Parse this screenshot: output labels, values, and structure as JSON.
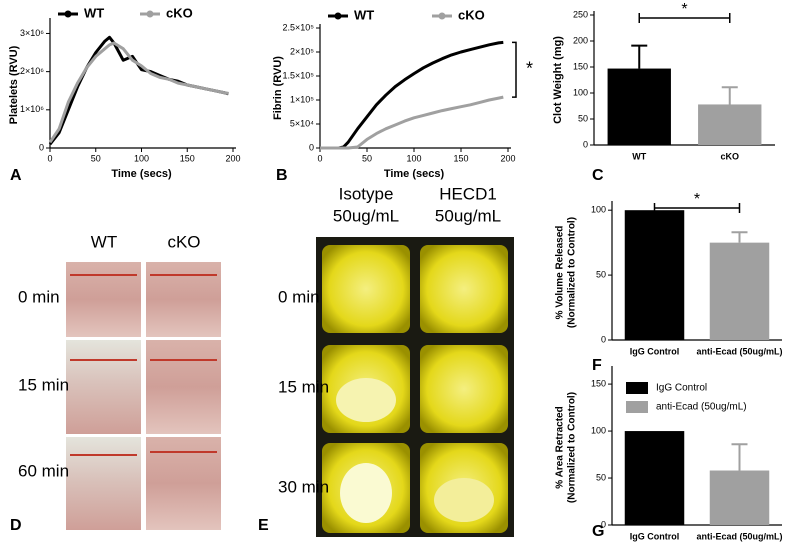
{
  "chart_data": [
    {
      "type": "line",
      "panel_label": "A",
      "ylabel": "Platelets (RVU)",
      "xlabel": "Time (secs)",
      "x": [
        0,
        10,
        20,
        30,
        40,
        50,
        60,
        65,
        70,
        80,
        90,
        100,
        110,
        120,
        130,
        140,
        150,
        160,
        170,
        180,
        190,
        195
      ],
      "series": [
        {
          "name": "WT",
          "color": "#000000",
          "values": [
            100000,
            400000,
            1000000,
            1600000,
            2100000,
            2500000,
            2800000,
            2900000,
            2750000,
            2300000,
            2400000,
            2050000,
            2000000,
            1900000,
            1800000,
            1750000,
            1650000,
            1600000,
            1550000,
            1500000,
            1450000,
            1420000
          ]
        },
        {
          "name": "cKO",
          "color": "#a0a0a0",
          "values": [
            150000,
            500000,
            1200000,
            1700000,
            2100000,
            2400000,
            2600000,
            2700000,
            2750000,
            2600000,
            2300000,
            2150000,
            1950000,
            1850000,
            1800000,
            1700000,
            1650000,
            1600000,
            1550000,
            1500000,
            1450000,
            1430000
          ]
        }
      ],
      "xlim": [
        0,
        200
      ],
      "xticks": [
        0,
        50,
        100,
        150,
        200
      ],
      "ylim": [
        0,
        3300000
      ],
      "yticks": [
        0,
        {
          "value": 1000000,
          "label": "1×10⁶"
        },
        {
          "value": 2000000,
          "label": "2×10⁶"
        },
        {
          "value": 3000000,
          "label": "3×10⁶"
        }
      ]
    },
    {
      "type": "line",
      "panel_label": "B",
      "ylabel": "Fibrin (RVU)",
      "xlabel": "Time (secs)",
      "x": [
        0,
        10,
        20,
        25,
        30,
        40,
        50,
        60,
        70,
        80,
        90,
        100,
        110,
        120,
        130,
        140,
        150,
        160,
        170,
        180,
        190,
        195
      ],
      "series": [
        {
          "name": "WT",
          "color": "#000000",
          "values": [
            0,
            0,
            0,
            2000,
            12000,
            40000,
            65000,
            90000,
            110000,
            128000,
            142000,
            155000,
            167000,
            177000,
            186000,
            194000,
            200000,
            205000,
            210000,
            215000,
            219000,
            220000
          ]
        },
        {
          "name": "cKO",
          "color": "#a0a0a0",
          "values": [
            0,
            0,
            0,
            0,
            0,
            2000,
            18000,
            30000,
            40000,
            48000,
            56000,
            63000,
            68000,
            73000,
            78000,
            82000,
            86000,
            90000,
            95000,
            100000,
            104000,
            106000
          ]
        }
      ],
      "annotations": [
        "*"
      ],
      "xlim": [
        0,
        200
      ],
      "xticks": [
        0,
        50,
        100,
        150,
        200
      ],
      "ylim": [
        0,
        250000
      ],
      "yticks": [
        0,
        {
          "value": 50000,
          "label": "5×10⁴"
        },
        {
          "value": 100000,
          "label": "1×10⁵"
        },
        {
          "value": 150000,
          "label": "1.5×10⁵"
        },
        {
          "value": 200000,
          "label": "2×10⁵"
        },
        {
          "value": 250000,
          "label": "2.5×10⁵"
        }
      ]
    },
    {
      "type": "bar",
      "panel_label": "C",
      "ylabel": "Clot Weight (mg)",
      "categories": [
        "WT",
        "cKO"
      ],
      "values": [
        147,
        78
      ],
      "errors": [
        44,
        33
      ],
      "colors": [
        "#000000",
        "#a0a0a0"
      ],
      "annotations": [
        "*"
      ],
      "ylim": [
        0,
        250
      ],
      "yticks": [
        0,
        50,
        100,
        150,
        200,
        250
      ]
    },
    {
      "type": "bar",
      "panel_label": "F",
      "ylabel": [
        "% Volume Released",
        "(Normalized to Control)"
      ],
      "categories": [
        "IgG Control",
        "anti-Ecad (50ug/mL)"
      ],
      "values": [
        100,
        75
      ],
      "errors": [
        null,
        8
      ],
      "colors": [
        "#000000",
        "#a0a0a0"
      ],
      "annotations": [
        "*"
      ],
      "ylim": [
        0,
        104
      ],
      "yticks": [
        0,
        50,
        100
      ]
    },
    {
      "type": "bar",
      "panel_label": "G",
      "ylabel": [
        "% Area Retracted",
        "(Normalized to Control)"
      ],
      "categories": [
        "IgG Control",
        "anti-Ecad (50ug/mL)"
      ],
      "values": [
        100,
        58
      ],
      "errors": [
        null,
        28
      ],
      "colors": [
        "#000000",
        "#a0a0a0"
      ],
      "legend": [
        "IgG Control",
        "anti-Ecad (50ug/mL)"
      ],
      "ylim": [
        0,
        165
      ],
      "yticks": [
        0,
        50,
        100,
        150
      ]
    }
  ],
  "photo_panels": [
    {
      "label": "D",
      "columns": [
        [
          "WT"
        ],
        [
          "cKO"
        ]
      ],
      "rows": [
        "0 min",
        "15 min",
        "60 min"
      ]
    },
    {
      "label": "E",
      "columns": [
        [
          "Isotype",
          "50ug/mL"
        ],
        [
          "HECD1",
          "50ug/mL"
        ]
      ],
      "rows": [
        "0 min",
        "15 min",
        "30 min"
      ]
    }
  ]
}
